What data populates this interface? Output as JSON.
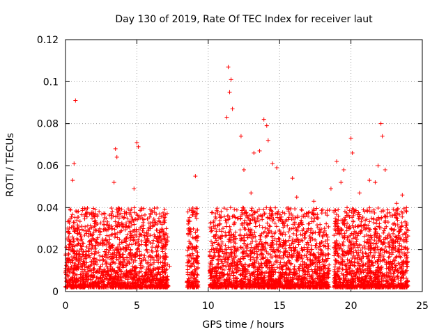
{
  "chart_data": {
    "type": "scatter",
    "title": "Day 130 of 2019, Rate Of TEC Index for receiver laut",
    "xlabel": "GPS time / hours",
    "ylabel": "ROTI / TECUs",
    "xlim": [
      0,
      25
    ],
    "ylim": [
      0,
      0.12
    ],
    "xticks": [
      0,
      5,
      10,
      15,
      20,
      25
    ],
    "xtick_labels": [
      "0",
      "5",
      "10",
      "15",
      "20",
      "25"
    ],
    "yticks": [
      0,
      0.02,
      0.04,
      0.06,
      0.08,
      0.1,
      0.12
    ],
    "ytick_labels": [
      "0",
      "0.02",
      "0.04",
      "0.06",
      "0.08",
      "0.1",
      "0.12"
    ],
    "grid": true,
    "marker": "+",
    "color": "#ff0000",
    "series": [
      {
        "name": "ROTI",
        "x": [
          0.1,
          0.2,
          0.3,
          0.5,
          0.6,
          0.7,
          0.8,
          0.9,
          1.1,
          1.3,
          1.6,
          1.9,
          2.2,
          2.4,
          2.6,
          2.9,
          3.1,
          3.3,
          3.5,
          3.7,
          3.9,
          4.1,
          4.3,
          4.5,
          4.7,
          4.9,
          5.1,
          5.3,
          5.5,
          5.7,
          6.0,
          6.2,
          6.5,
          6.8,
          7.0,
          7.3,
          8.6,
          8.8,
          9.0,
          9.1,
          9.2,
          10.2,
          10.4,
          10.7,
          11.0,
          11.2,
          11.4,
          11.5,
          11.6,
          11.7,
          11.8,
          12.1,
          12.3,
          12.5,
          12.8,
          13.1,
          13.4,
          13.6,
          13.8,
          14.0,
          14.2,
          14.4,
          14.6,
          14.8,
          15.0,
          15.2,
          15.4,
          15.7,
          16.0,
          16.3,
          16.6,
          16.9,
          17.2,
          17.5,
          17.8,
          18.1,
          18.4,
          18.9,
          19.1,
          19.3,
          19.5,
          19.7,
          19.9,
          20.2,
          20.5,
          20.8,
          21.1,
          21.4,
          21.7,
          21.9,
          22.1,
          22.3,
          22.5,
          22.8,
          23.1,
          23.4,
          23.7,
          23.9,
          0.7,
          3.5,
          5.0,
          5.1,
          9.1,
          11.4,
          11.6,
          11.7,
          12.3,
          13.2,
          13.9,
          14.1,
          14.2,
          14.5,
          19.0,
          19.5,
          20.0,
          20.1,
          21.7,
          21.9,
          22.1,
          22.2,
          22.4,
          0.5,
          0.6,
          3.4,
          3.6,
          4.8,
          11.3,
          11.5,
          12.5,
          13.0,
          13.6,
          14.8,
          15.9,
          16.2,
          17.4,
          18.6,
          19.3,
          20.6,
          21.3,
          23.2,
          23.6,
          23.9
        ],
        "y": [
          0.012,
          0.018,
          0.009,
          0.015,
          0.024,
          0.011,
          0.008,
          0.013,
          0.016,
          0.014,
          0.019,
          0.022,
          0.013,
          0.017,
          0.025,
          0.012,
          0.021,
          0.018,
          0.027,
          0.015,
          0.02,
          0.014,
          0.022,
          0.016,
          0.012,
          0.018,
          0.024,
          0.011,
          0.016,
          0.02,
          0.013,
          0.015,
          0.011,
          0.014,
          0.017,
          0.012,
          0.015,
          0.009,
          0.021,
          0.028,
          0.016,
          0.013,
          0.017,
          0.011,
          0.019,
          0.022,
          0.028,
          0.035,
          0.02,
          0.014,
          0.009,
          0.015,
          0.021,
          0.012,
          0.017,
          0.013,
          0.019,
          0.023,
          0.016,
          0.026,
          0.018,
          0.021,
          0.013,
          0.024,
          0.017,
          0.012,
          0.019,
          0.014,
          0.018,
          0.015,
          0.011,
          0.013,
          0.02,
          0.016,
          0.014,
          0.012,
          0.018,
          0.015,
          0.022,
          0.016,
          0.019,
          0.012,
          0.024,
          0.017,
          0.021,
          0.013,
          0.018,
          0.025,
          0.014,
          0.031,
          0.02,
          0.015,
          0.019,
          0.013,
          0.016,
          0.022,
          0.012,
          0.017,
          0.091,
          0.068,
          0.071,
          0.069,
          0.055,
          0.107,
          0.101,
          0.087,
          0.074,
          0.066,
          0.082,
          0.079,
          0.072,
          0.061,
          0.062,
          0.058,
          0.073,
          0.066,
          0.052,
          0.06,
          0.08,
          0.074,
          0.058,
          0.053,
          0.061,
          0.052,
          0.064,
          0.049,
          0.083,
          0.095,
          0.058,
          0.047,
          0.067,
          0.059,
          0.054,
          0.045,
          0.043,
          0.049,
          0.052,
          0.047,
          0.053,
          0.042,
          0.046,
          0.038
        ],
        "cluster_ranges_hours": [
          [
            0,
            7.2
          ],
          [
            8.5,
            9.3
          ],
          [
            10.1,
            12.1
          ],
          [
            12.2,
            18.5
          ],
          [
            18.8,
            24
          ]
        ],
        "baseline_range": [
          0.002,
          0.04
        ]
      }
    ]
  }
}
